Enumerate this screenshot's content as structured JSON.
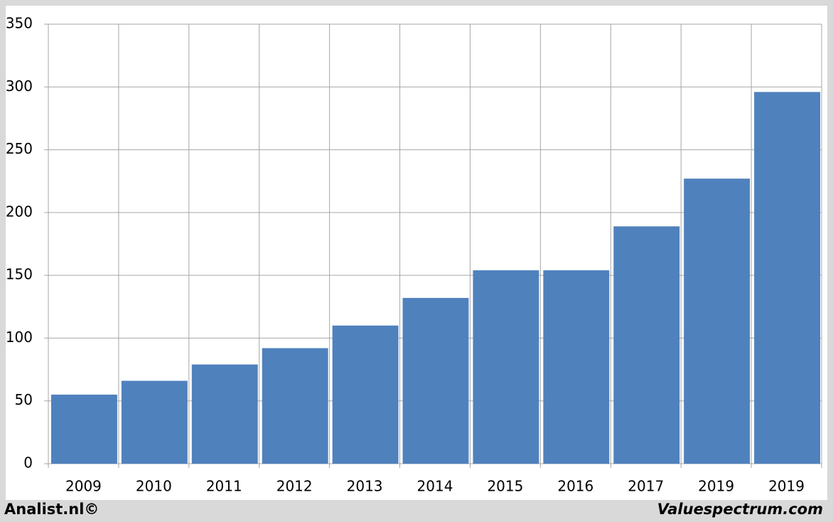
{
  "chart_data": {
    "type": "bar",
    "categories": [
      "2009",
      "2010",
      "2011",
      "2012",
      "2013",
      "2014",
      "2015",
      "2016",
      "2017",
      "2019",
      "2019"
    ],
    "values": [
      55,
      66,
      79,
      92,
      110,
      132,
      154,
      154,
      189,
      227,
      296
    ],
    "color": "#4f81bd",
    "ylim": [
      0,
      350
    ],
    "yticks": [
      0,
      50,
      100,
      150,
      200,
      250,
      300,
      350
    ],
    "grid": true,
    "footer_left": "Analist.nl©",
    "footer_right": "Valuespectrum.com"
  }
}
